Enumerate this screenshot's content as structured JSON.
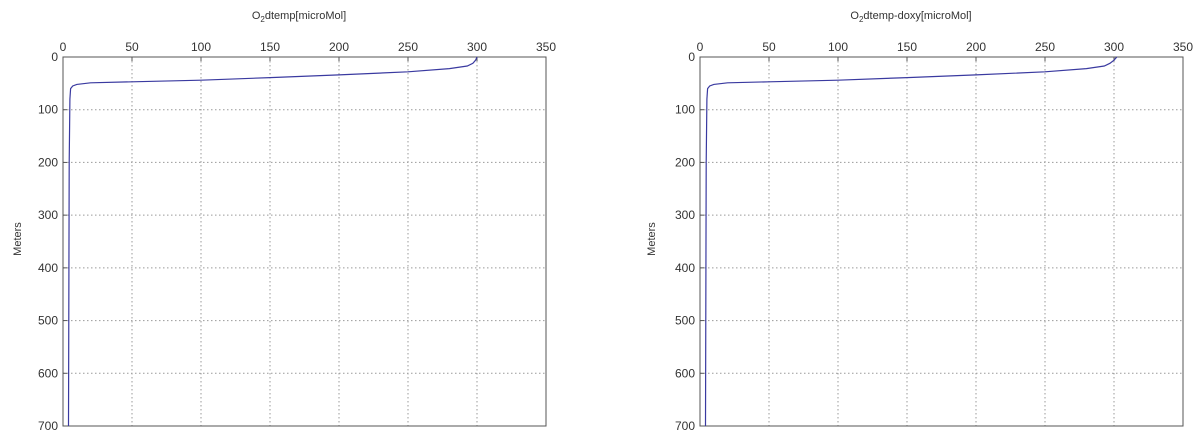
{
  "chart_data": [
    {
      "type": "line",
      "title_main": "O",
      "title_sub": "2",
      "title_rest": "dtemp[microMol]",
      "ylabel": "Meters",
      "xlim": [
        0,
        350
      ],
      "ylim": [
        0,
        700
      ],
      "y_reversed": true,
      "x_axis_position": "top",
      "grid": true,
      "x_ticks": [
        "0",
        "50",
        "100",
        "150",
        "200",
        "250",
        "300",
        "350"
      ],
      "y_ticks": [
        "0",
        "100",
        "200",
        "300",
        "400",
        "500",
        "600",
        "700"
      ],
      "series": [
        {
          "x": [
            300,
            299,
            297,
            293,
            280,
            250,
            200,
            150,
            100,
            50,
            20,
            10,
            7,
            5.5,
            5,
            4.5,
            4
          ],
          "y": [
            0,
            6,
            12,
            17,
            22,
            28,
            34,
            39,
            44,
            47,
            49,
            52,
            55,
            60,
            80,
            200,
            700
          ]
        }
      ]
    },
    {
      "type": "line",
      "title_main": "O",
      "title_sub": "2",
      "title_rest": "dtemp-doxy[microMol]",
      "ylabel": "Meters",
      "xlim": [
        0,
        350
      ],
      "ylim": [
        0,
        700
      ],
      "y_reversed": true,
      "x_axis_position": "top",
      "grid": true,
      "x_ticks": [
        "0",
        "50",
        "100",
        "150",
        "200",
        "250",
        "300",
        "350"
      ],
      "y_ticks": [
        "0",
        "100",
        "200",
        "300",
        "400",
        "500",
        "600",
        "700"
      ],
      "series": [
        {
          "x": [
            302,
            300,
            297,
            293,
            280,
            250,
            200,
            150,
            100,
            50,
            20,
            10,
            7,
            5.5,
            5,
            4.5,
            4
          ],
          "y": [
            0,
            6,
            12,
            17,
            22,
            28,
            34,
            39,
            44,
            47,
            49,
            52,
            55,
            60,
            80,
            200,
            700
          ]
        }
      ]
    }
  ]
}
